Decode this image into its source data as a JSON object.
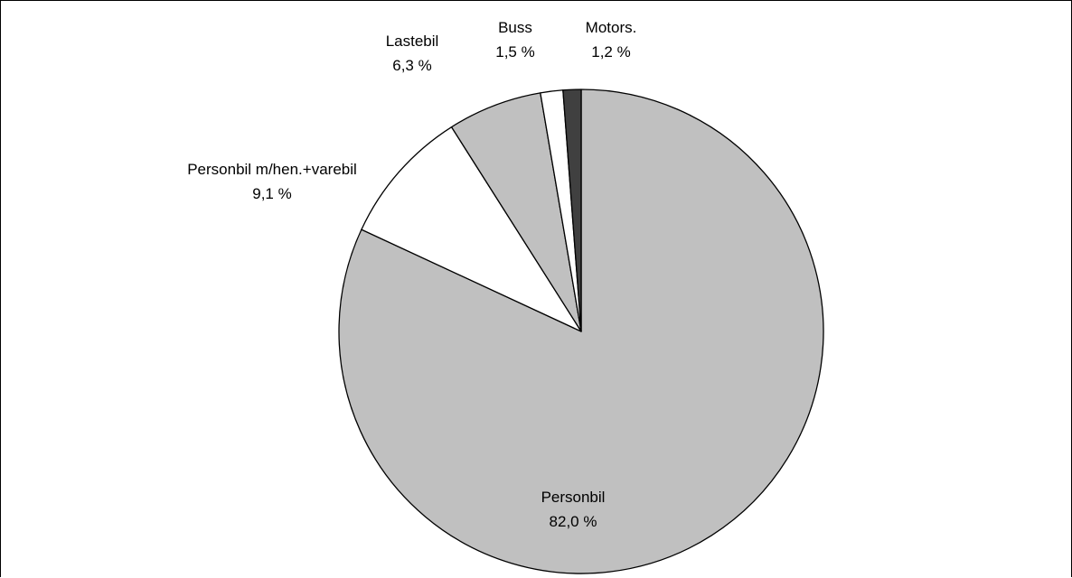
{
  "chart_data": {
    "type": "pie",
    "slices": [
      {
        "name": "Personbil",
        "label": "82,0 %",
        "value": 82.0,
        "color": "#c0c0c0"
      },
      {
        "name": "Personbil m/hen.+varebil",
        "label": "9,1 %",
        "value": 9.1,
        "color": "#ffffff"
      },
      {
        "name": "Lastebil",
        "label": "6,3 %",
        "value": 6.3,
        "color": "#c0c0c0"
      },
      {
        "name": "Buss",
        "label": "1,5 %",
        "value": 1.5,
        "color": "#ffffff"
      },
      {
        "name": "Motors.",
        "label": "1,2 %",
        "value": 1.2,
        "color": "#404040"
      }
    ],
    "start_angle": "12 o'clock",
    "direction": "clockwise",
    "outline_color": "#000000",
    "legend": "none"
  }
}
